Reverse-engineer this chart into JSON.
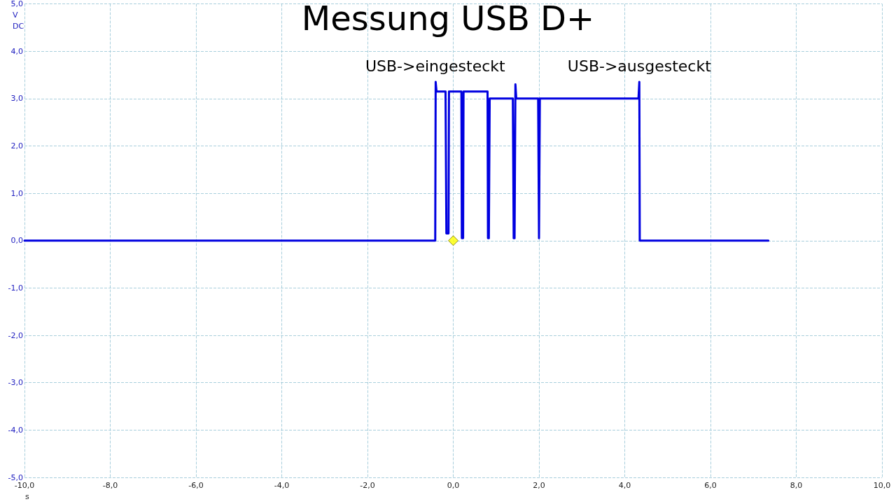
{
  "chart_data": {
    "type": "line",
    "title": "Messung USB D+",
    "xlabel": "s",
    "ylabel": "V",
    "annotations": [
      {
        "text": "USB->eingesteckt",
        "x": -0.42,
        "y": 3.35
      },
      {
        "text": "USB->ausgesteckt",
        "x": 4.34,
        "y": 3.35
      },
      "DC"
    ],
    "xlim": [
      -10,
      10
    ],
    "ylim": [
      -5,
      5
    ],
    "xticks": [
      {
        "value": -10,
        "label": "-10,0"
      },
      {
        "value": -8,
        "label": "-8,0"
      },
      {
        "value": -6,
        "label": "-6,0"
      },
      {
        "value": -4,
        "label": "-4,0"
      },
      {
        "value": -2,
        "label": "-2,0"
      },
      {
        "value": 0,
        "label": "0,0"
      },
      {
        "value": 2,
        "label": "2,0"
      },
      {
        "value": 4,
        "label": "4,0"
      },
      {
        "value": 6,
        "label": "6,0"
      },
      {
        "value": 8,
        "label": "8,0"
      },
      {
        "value": 10,
        "label": "10,0"
      }
    ],
    "yticks": [
      {
        "value": -5,
        "label": "-5,0"
      },
      {
        "value": -4,
        "label": "-4,0"
      },
      {
        "value": -3,
        "label": "-3,0"
      },
      {
        "value": -2,
        "label": "-2,0"
      },
      {
        "value": -1,
        "label": "-1,0"
      },
      {
        "value": 0,
        "label": "0,0"
      },
      {
        "value": 1,
        "label": "1,0"
      },
      {
        "value": 2,
        "label": "2,0"
      },
      {
        "value": 3,
        "label": "3,0"
      },
      {
        "value": 4,
        "label": "4,0"
      },
      {
        "value": 5,
        "label": "5,0"
      }
    ],
    "grid": true,
    "line_style": "solid",
    "series": [
      {
        "color": "#0000e0",
        "marker": "none",
        "x": [
          -10,
          -0.42,
          -0.41,
          -0.39,
          -0.18,
          -0.16,
          -0.11,
          -0.1,
          0.19,
          0.2,
          0.23,
          0.24,
          0.8,
          0.81,
          0.83,
          0.85,
          1.39,
          1.41,
          1.43,
          1.45,
          1.47,
          1.98,
          2.0,
          2.02,
          4.32,
          4.34,
          4.35,
          7.35
        ],
        "values": [
          0,
          0,
          3.35,
          3.15,
          3.15,
          0.15,
          0.15,
          3.15,
          3.15,
          0.05,
          0.05,
          3.15,
          3.15,
          0.05,
          0.05,
          3.0,
          3.0,
          0.05,
          0.05,
          3.3,
          3.0,
          3.0,
          0.05,
          3.0,
          3.0,
          3.35,
          0,
          0
        ]
      },
      {
        "type": "scatter",
        "color": "#ffff00",
        "marker": "diamond",
        "x": [
          0
        ],
        "values": [
          0
        ]
      }
    ]
  }
}
